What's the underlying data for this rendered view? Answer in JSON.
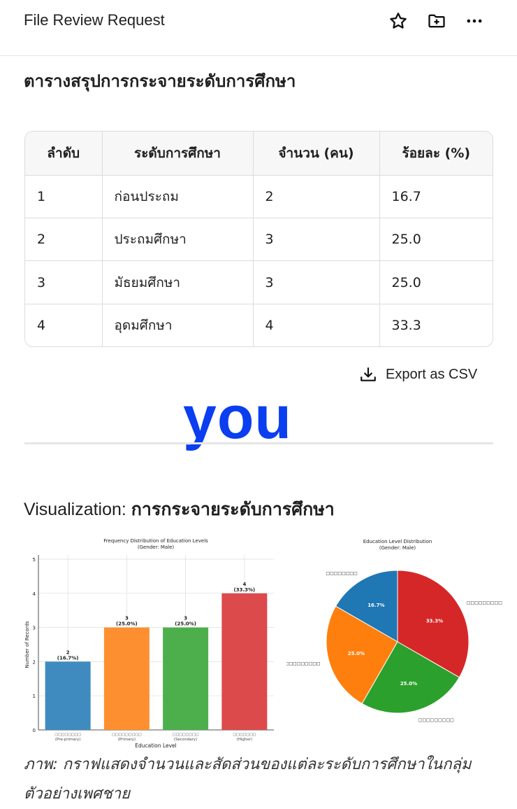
{
  "header": {
    "title": "File Review Request",
    "icons": [
      "star-icon",
      "folder-plus-icon",
      "more-icon"
    ]
  },
  "section_title": "ตารางสรุปการกระจายระดับการศึกษา",
  "table": {
    "headers": [
      "ลำดับ",
      "ระดับการศึกษา",
      "จำนวน (คน)",
      "ร้อยละ (%)"
    ],
    "rows": [
      [
        "1",
        "ก่อนประถม",
        "2",
        "16.7"
      ],
      [
        "2",
        "ประถมศึกษา",
        "3",
        "25.0"
      ],
      [
        "3",
        "มัธยมศึกษา",
        "3",
        "25.0"
      ],
      [
        "4",
        "อุดมศึกษา",
        "4",
        "33.3"
      ]
    ]
  },
  "export_label": "Export as CSV",
  "overlay_text": "you",
  "visualization": {
    "prefix": "Visualization: ",
    "title": "การกระจายระดับการศึกษา"
  },
  "chart_data": [
    {
      "type": "bar",
      "title": "Frequency Distribution of Education Levels",
      "subtitle": "(Gender: Male)",
      "xlabel": "Education Level",
      "ylabel": "Number of Records",
      "ylim": [
        0,
        5
      ],
      "grid": true,
      "categories": [
        "□□□□□□□□",
        "□□□□□□□□□",
        "□□□□□□□□",
        "□□□□□□□"
      ],
      "category_sublabels": [
        "(Pre-primary)",
        "(Primary)",
        "(Secondary)",
        "(Higher)"
      ],
      "values": [
        2,
        3,
        3,
        4
      ],
      "data_labels": [
        "2\n(16.7%)",
        "3\n(25.0%)",
        "3\n(25.0%)",
        "4\n(33.3%)"
      ],
      "colors": [
        "#3f8bc0",
        "#fd8f30",
        "#4caf4c",
        "#dc4a4c"
      ],
      "yticks": [
        "0",
        "1",
        "2",
        "3",
        "4",
        "5"
      ]
    },
    {
      "type": "pie",
      "title": "Education Level Distribution",
      "subtitle": "(Gender: Male)",
      "labels": [
        "□□□□□□□□",
        "□□□□□□□□□□",
        "□□□□□□□□□",
        "□□□□□□□□□"
      ],
      "values": [
        16.7,
        25.0,
        25.0,
        33.3
      ],
      "data_labels": [
        "16.7%",
        "25.0%",
        "25.0%",
        "33.3%"
      ],
      "colors": [
        "#1f77b4",
        "#ff7f0e",
        "#2ca02c",
        "#d62728"
      ]
    }
  ],
  "caption": "ภาพ: กราฟแสดงจำนวนและสัดส่วนของแต่ละระดับการศึกษาในกลุ่มตัวอย่างเพศชาย"
}
